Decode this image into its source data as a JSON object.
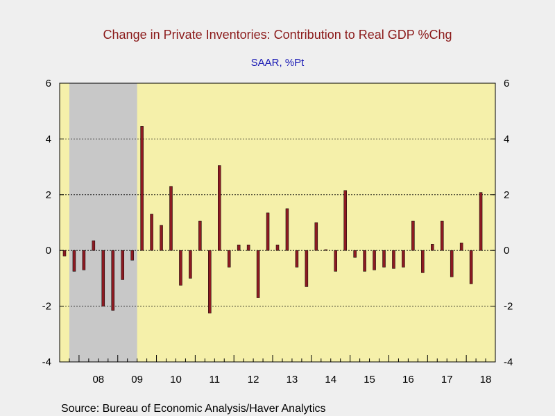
{
  "chart_data": {
    "type": "bar",
    "title": "Change in Private Inventories: Contribution to Real GDP %Chg",
    "subtitle": "SAAR, %Pt",
    "source": "Source:  Bureau of Economic Analysis/Haver Analytics",
    "ylim": [
      -4,
      6
    ],
    "y_ticks": [
      "-4",
      "-2",
      "0",
      "2",
      "4",
      "6"
    ],
    "x_ticks": [
      "08",
      "09",
      "10",
      "11",
      "12",
      "13",
      "14",
      "15",
      "16",
      "17",
      "18"
    ],
    "x_start_year": 2007,
    "x_start_quarter": 3,
    "recession": {
      "start": "2007Q4",
      "end": "2009Q2"
    },
    "grid": true,
    "colors": {
      "plot_bg": "#f5f0aa",
      "recession": "#c8c8c8",
      "bar": "#8c1a22",
      "title": "#8b1a1a",
      "subtitle": "#1a1ab4"
    },
    "series": [
      {
        "quarters": [
          "2007Q3",
          "2007Q4",
          "2008Q1",
          "2008Q2",
          "2008Q3",
          "2008Q4",
          "2009Q1",
          "2009Q2",
          "2009Q3",
          "2009Q4",
          "2010Q1",
          "2010Q2",
          "2010Q3",
          "2010Q4",
          "2011Q1",
          "2011Q2",
          "2011Q3",
          "2011Q4",
          "2012Q1",
          "2012Q2",
          "2012Q3",
          "2012Q4",
          "2013Q1",
          "2013Q2",
          "2013Q3",
          "2013Q4",
          "2014Q1",
          "2014Q2",
          "2014Q3",
          "2014Q4",
          "2015Q1",
          "2015Q2",
          "2015Q3",
          "2015Q4",
          "2016Q1",
          "2016Q2",
          "2016Q3",
          "2016Q4",
          "2017Q1",
          "2017Q2",
          "2017Q3",
          "2017Q4",
          "2018Q1",
          "2018Q2",
          "2018Q3"
        ],
        "values": [
          -0.2,
          -0.75,
          -0.7,
          0.35,
          -2.0,
          -2.15,
          -1.05,
          -0.35,
          4.45,
          1.3,
          0.9,
          2.3,
          -1.25,
          -1.0,
          1.05,
          -2.25,
          3.05,
          -0.6,
          0.2,
          0.2,
          -1.7,
          1.35,
          0.2,
          1.5,
          -0.6,
          -1.3,
          1.0,
          0.03,
          -0.75,
          2.15,
          -0.25,
          -0.75,
          -0.7,
          -0.6,
          -0.65,
          -0.6,
          1.05,
          -0.8,
          0.22,
          1.05,
          -0.95,
          0.27,
          -1.2,
          2.08,
          null
        ]
      }
    ]
  }
}
